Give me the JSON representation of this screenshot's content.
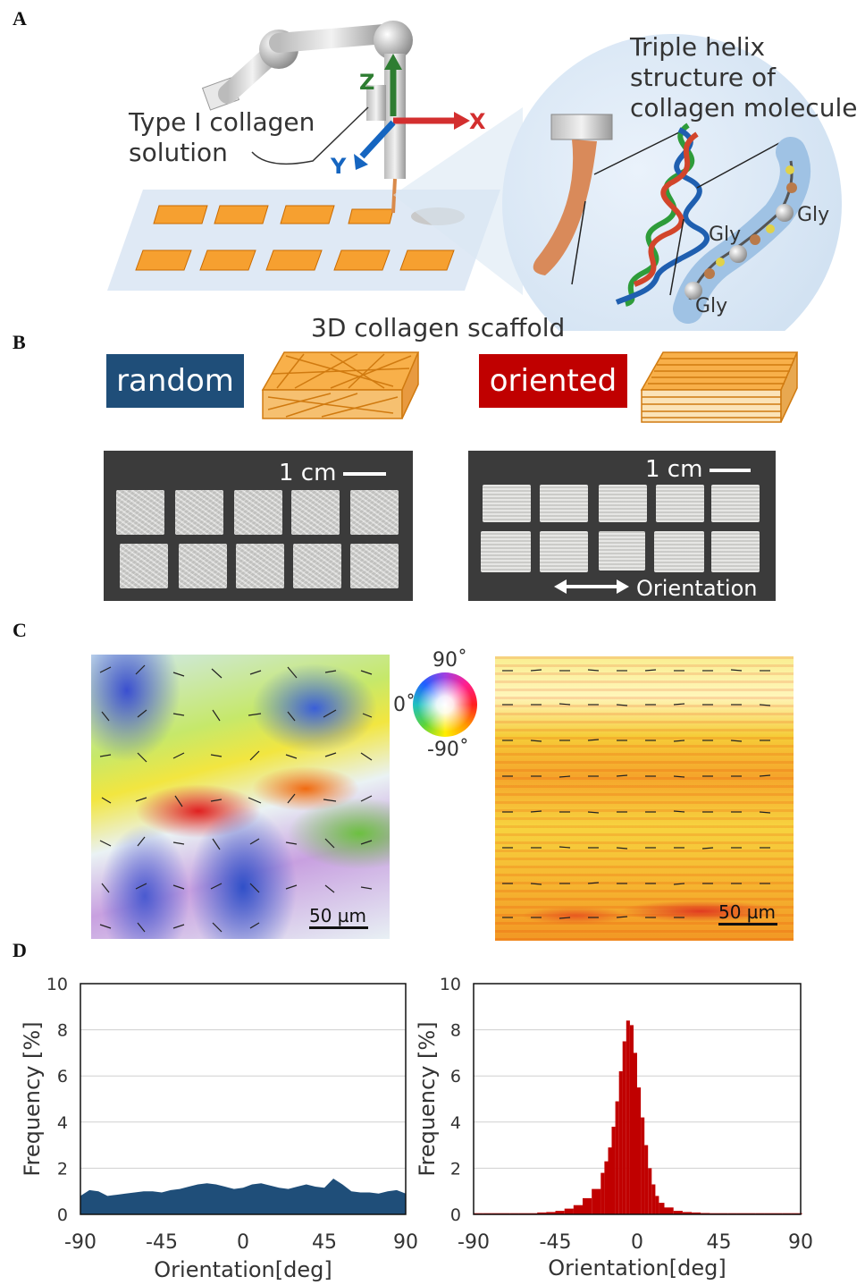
{
  "panels": {
    "a": "A",
    "b": "B",
    "c": "C",
    "d": "D"
  },
  "panel_a": {
    "axis_z": "Z",
    "axis_x": "X",
    "axis_y": "Y",
    "solution_label_line1": "Type I collagen",
    "solution_label_line2": "solution",
    "helix_title_line1": "Triple helix",
    "helix_title_line2": "structure of",
    "helix_title_line3": "collagen molecule",
    "gly_1": "Gly",
    "gly_2": "Gly",
    "gly_3": "Gly",
    "scaffold_caption": "3D collagen scaffold"
  },
  "panel_b": {
    "random_label": "random",
    "oriented_label": "oriented",
    "scale_left": "1 cm",
    "scale_right": "1 cm",
    "orientation_label": "Orientation",
    "colors": {
      "random_box": "#1f4e79",
      "oriented_box": "#c00000",
      "scaffold": "#f6a030"
    }
  },
  "panel_c": {
    "wheel_top": "90˚",
    "wheel_left": "0˚",
    "wheel_bottom": "-90˚",
    "scale_left": "50 µm",
    "scale_right": "50 µm"
  },
  "chart_data": [
    {
      "type": "area",
      "ylabel": "Frequency [%]",
      "xlabel": "Orientation[deg]",
      "xlim": [
        -90,
        90
      ],
      "ylim": [
        0,
        10
      ],
      "x_ticks": [
        "-90",
        "-45",
        "0",
        "45",
        "90"
      ],
      "y_ticks": [
        "0",
        "2",
        "4",
        "6",
        "8",
        "10"
      ],
      "grid": true,
      "color": "#1f4e79",
      "x": [
        -90,
        -85,
        -80,
        -75,
        -70,
        -65,
        -60,
        -55,
        -50,
        -45,
        -40,
        -35,
        -30,
        -25,
        -20,
        -15,
        -10,
        -5,
        0,
        5,
        10,
        15,
        20,
        25,
        30,
        35,
        40,
        45,
        50,
        55,
        60,
        65,
        70,
        75,
        80,
        85,
        90
      ],
      "y": [
        0.8,
        1.05,
        1.0,
        0.8,
        0.85,
        0.9,
        0.95,
        1.0,
        1.0,
        0.95,
        1.05,
        1.1,
        1.2,
        1.3,
        1.35,
        1.3,
        1.2,
        1.1,
        1.15,
        1.3,
        1.35,
        1.25,
        1.15,
        1.1,
        1.2,
        1.3,
        1.2,
        1.15,
        1.55,
        1.3,
        1.0,
        0.95,
        0.95,
        0.9,
        1.0,
        1.05,
        0.9
      ]
    },
    {
      "type": "bar",
      "ylabel": "Frequency [%]",
      "xlabel": "Orientation[deg]",
      "xlim": [
        -90,
        90
      ],
      "ylim": [
        0,
        10
      ],
      "x_ticks": [
        "-90",
        "-45",
        "0",
        "45",
        "90"
      ],
      "y_ticks": [
        "0",
        "2",
        "4",
        "6",
        "8",
        "10"
      ],
      "grid": true,
      "color": "#c00000",
      "x": [
        -90,
        -85,
        -80,
        -75,
        -70,
        -65,
        -60,
        -55,
        -50,
        -45,
        -40,
        -35,
        -30,
        -25,
        -20,
        -18,
        -16,
        -14,
        -12,
        -10,
        -8,
        -6,
        -4,
        -2,
        0,
        2,
        4,
        6,
        8,
        10,
        12,
        15,
        20,
        25,
        30,
        35,
        40,
        45,
        50,
        55,
        60,
        65,
        70,
        75,
        80,
        85,
        90
      ],
      "y": [
        0.05,
        0.05,
        0.05,
        0.05,
        0.05,
        0.05,
        0.05,
        0.08,
        0.1,
        0.15,
        0.25,
        0.4,
        0.7,
        1.1,
        1.8,
        2.3,
        2.9,
        3.8,
        4.9,
        6.2,
        7.5,
        8.4,
        8.2,
        7.0,
        5.5,
        4.2,
        3.0,
        2.0,
        1.3,
        0.8,
        0.5,
        0.3,
        0.15,
        0.1,
        0.08,
        0.06,
        0.05,
        0.05,
        0.05,
        0.05,
        0.05,
        0.05,
        0.05,
        0.05,
        0.05,
        0.05,
        0.05
      ]
    }
  ]
}
